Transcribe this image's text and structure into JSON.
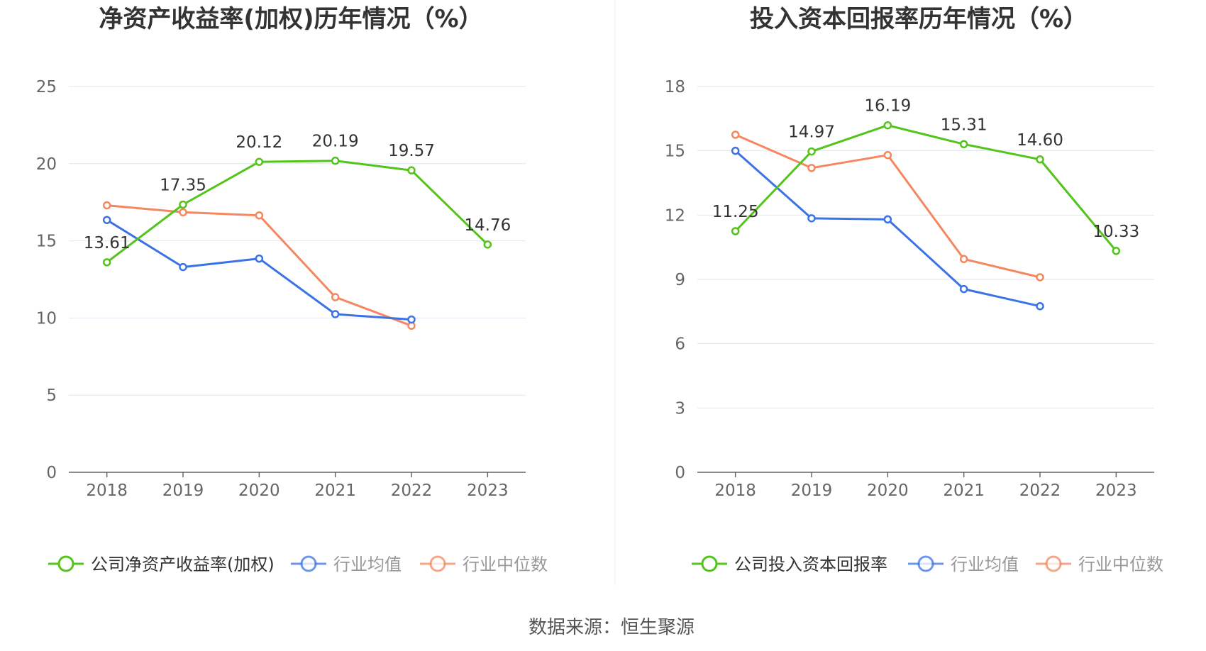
{
  "source_label": "数据来源：恒生聚源",
  "colors": {
    "company": "#52c41a",
    "industry_avg": "#3b73e6",
    "industry_median": "#f4875f",
    "grid": "#e0e6f1",
    "axis": "#666666"
  },
  "chart_data": [
    {
      "type": "line",
      "title": "净资产收益率(加权)历年情况（%）",
      "categories": [
        "2018",
        "2019",
        "2020",
        "2021",
        "2022",
        "2023"
      ],
      "ylim": [
        0,
        25
      ],
      "yticks": [
        "0",
        "5",
        "10",
        "15",
        "20",
        "25"
      ],
      "grid": true,
      "legend_position": "bottom",
      "series": [
        {
          "name": "公司净资产收益率(加权)",
          "key": "company",
          "values": [
            13.61,
            17.35,
            20.12,
            20.19,
            19.57,
            14.76
          ],
          "labels": [
            "13.61",
            "17.35",
            "20.12",
            "20.19",
            "19.57",
            "14.76"
          ]
        },
        {
          "name": "行业均值",
          "key": "industry_avg",
          "values": [
            16.35,
            13.3,
            13.85,
            10.25,
            9.9,
            null
          ]
        },
        {
          "name": "行业中位数",
          "key": "industry_median",
          "values": [
            17.3,
            16.85,
            16.65,
            11.35,
            9.5,
            null
          ]
        }
      ]
    },
    {
      "type": "line",
      "title": "投入资本回报率历年情况（%）",
      "categories": [
        "2018",
        "2019",
        "2020",
        "2021",
        "2022",
        "2023"
      ],
      "ylim": [
        0,
        18
      ],
      "yticks": [
        "0",
        "3",
        "6",
        "9",
        "12",
        "15",
        "18"
      ],
      "grid": true,
      "legend_position": "bottom",
      "series": [
        {
          "name": "公司投入资本回报率",
          "key": "company",
          "values": [
            11.25,
            14.97,
            16.19,
            15.31,
            14.6,
            10.33
          ],
          "labels": [
            "11.25",
            "14.97",
            "16.19",
            "15.31",
            "14.60",
            "10.33"
          ]
        },
        {
          "name": "行业均值",
          "key": "industry_avg",
          "values": [
            15.0,
            11.85,
            11.8,
            8.55,
            7.75,
            null
          ]
        },
        {
          "name": "行业中位数",
          "key": "industry_median",
          "values": [
            15.75,
            14.2,
            14.8,
            9.95,
            9.1,
            null
          ]
        }
      ]
    }
  ]
}
